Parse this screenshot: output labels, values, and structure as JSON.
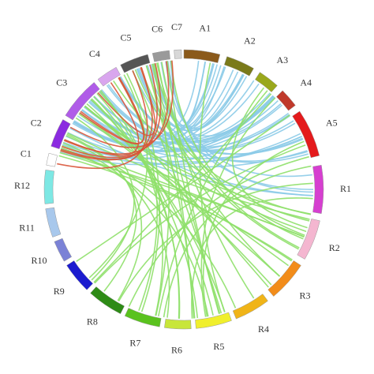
{
  "nodes": [
    {
      "label": "A1",
      "color": "#8b5a1b"
    },
    {
      "label": "A2",
      "color": "#7a7a1a"
    },
    {
      "label": "A3",
      "color": "#9aa81c"
    },
    {
      "label": "A4",
      "color": "#c0392b"
    },
    {
      "label": "A5",
      "color": "#e41a1c"
    },
    {
      "label": "R1",
      "color": "#d63fd0"
    },
    {
      "label": "R2",
      "color": "#f4b6d0"
    },
    {
      "label": "R3",
      "color": "#f28c1a"
    },
    {
      "label": "R4",
      "color": "#f0b418"
    },
    {
      "label": "R5",
      "color": "#f0ef2c"
    },
    {
      "label": "R6",
      "color": "#c8e63a"
    },
    {
      "label": "R7",
      "color": "#5ac21e"
    },
    {
      "label": "R8",
      "color": "#2e8b16"
    },
    {
      "label": "R9",
      "color": "#1c1ccf"
    },
    {
      "label": "R10",
      "color": "#7b82d6"
    },
    {
      "label": "R11",
      "color": "#a8c8ec"
    },
    {
      "label": "R12",
      "color": "#7de8e4"
    },
    {
      "label": "C1",
      "color": "#ffffff"
    },
    {
      "label": "C2",
      "color": "#8b2be0"
    },
    {
      "label": "C3",
      "color": "#b05ce8"
    },
    {
      "label": "C4",
      "color": "#d9a6ee"
    },
    {
      "label": "C5",
      "color": "#555555"
    },
    {
      "label": "C6",
      "color": "#9a9a9a"
    },
    {
      "label": "C7",
      "color": "#d8d8d8"
    }
  ]
}
